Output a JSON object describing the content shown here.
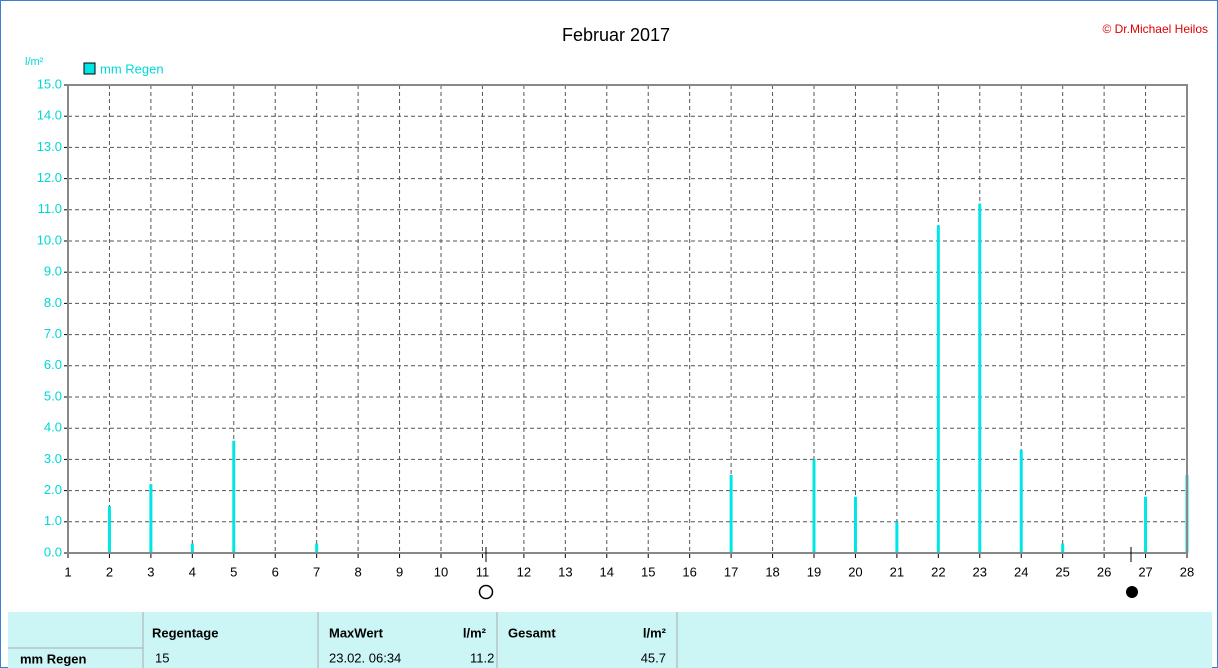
{
  "chart_data": {
    "type": "bar",
    "title": "Februar 2017",
    "credit": "© Dr.Michael Heilos",
    "y_label": "l/m²",
    "series": [
      {
        "name": "mm Regen",
        "color": "#00e5e5",
        "x": [
          2,
          3,
          4,
          5,
          7,
          17,
          19,
          20,
          21,
          22,
          23,
          24,
          25,
          27,
          28
        ],
        "values": [
          1.5,
          2.2,
          0.3,
          3.6,
          0.3,
          2.5,
          3.0,
          1.8,
          1.0,
          10.5,
          11.2,
          3.3,
          0.3,
          1.8,
          2.5
        ]
      }
    ],
    "xlim": [
      1,
      28
    ],
    "xticks": [
      1,
      2,
      3,
      4,
      5,
      6,
      7,
      8,
      9,
      10,
      11,
      12,
      13,
      14,
      15,
      16,
      17,
      18,
      19,
      20,
      21,
      22,
      23,
      24,
      25,
      26,
      27,
      28
    ],
    "ylim": [
      0,
      15
    ],
    "yticks": [
      {
        "value": 0,
        "label": "0.0"
      },
      {
        "value": 1,
        "label": "1.0"
      },
      {
        "value": 2,
        "label": "2.0"
      },
      {
        "value": 3,
        "label": "3.0"
      },
      {
        "value": 4,
        "label": "4.0"
      },
      {
        "value": 5,
        "label": "5.0"
      },
      {
        "value": 6,
        "label": "6.0"
      },
      {
        "value": 7,
        "label": "7.0"
      },
      {
        "value": 8,
        "label": "8.0"
      },
      {
        "value": 9,
        "label": "9.0"
      },
      {
        "value": 10,
        "label": "10.0"
      },
      {
        "value": 11,
        "label": "11.0"
      },
      {
        "value": 12,
        "label": "12.0"
      },
      {
        "value": 13,
        "label": "13.0"
      },
      {
        "value": 14,
        "label": "14.0"
      },
      {
        "value": 15,
        "label": "15.0"
      }
    ],
    "grid": true
  },
  "summary": {
    "row_label": "mm Regen",
    "rain_days_header": "Regentage",
    "rain_days": "15",
    "max_header": "MaxWert",
    "max_unit": "l/m²",
    "max_time": "23.02. 06:34",
    "max_value": "11.2",
    "total_header": "Gesamt",
    "total_unit": "l/m²",
    "total_value": "45.7"
  }
}
